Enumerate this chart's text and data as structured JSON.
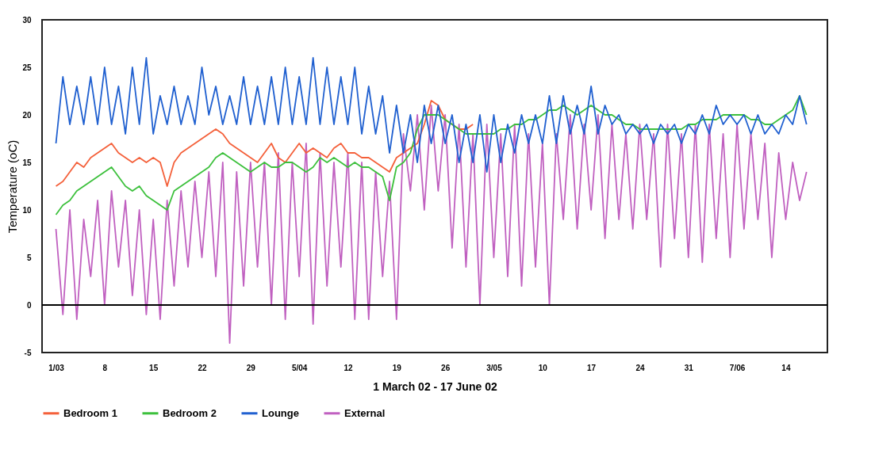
{
  "chart_data": {
    "type": "line",
    "xlabel": "1 March 02 - 17 June 02",
    "ylabel": "Temperature (oC)",
    "x": [
      "--03-01",
      "--03-02",
      "--03-03",
      "--03-04",
      "--03-05",
      "--03-06",
      "--03-07",
      "--03-08",
      "--03-09",
      "--03-10",
      "--03-11",
      "--03-12",
      "--03-13",
      "--03-14",
      "--03-15",
      "--03-16",
      "--03-17",
      "--03-18",
      "--03-19",
      "--03-20",
      "--03-21",
      "--03-22",
      "--03-23",
      "--03-24",
      "--03-25",
      "--03-26",
      "--03-27",
      "--03-28",
      "--03-29",
      "--03-30",
      "--03-31",
      "--04-01",
      "--04-02",
      "--04-03",
      "--04-04",
      "--04-05",
      "--04-06",
      "--04-07",
      "--04-08",
      "--04-09",
      "--04-10",
      "--04-11",
      "--04-12",
      "--04-13",
      "--04-14",
      "--04-15",
      "--04-16",
      "--04-17",
      "--04-18",
      "--04-19",
      "--04-20",
      "--04-21",
      "--04-22",
      "--04-23",
      "--04-24",
      "--04-25",
      "--04-26",
      "--04-27",
      "--04-28",
      "--04-29",
      "--04-30",
      "--05-01",
      "--05-02",
      "--05-03",
      "--05-04",
      "--05-05",
      "--05-06",
      "--05-07",
      "--05-08",
      "--05-09",
      "--05-10",
      "--05-11",
      "--05-12",
      "--05-13",
      "--05-14",
      "--05-15",
      "--05-16",
      "--05-17",
      "--05-18",
      "--05-19",
      "--05-20",
      "--05-21",
      "--05-22",
      "--05-23",
      "--05-24",
      "--05-25",
      "--05-26",
      "--05-27",
      "--05-28",
      "--05-29",
      "--05-30",
      "--05-31",
      "--06-01",
      "--06-02",
      "--06-03",
      "--06-04",
      "--06-05",
      "--06-06",
      "--06-07",
      "--06-08",
      "--06-09",
      "--06-10",
      "--06-11",
      "--06-12",
      "--06-13",
      "--06-14",
      "--06-15",
      "--06-16",
      "--06-17"
    ],
    "series": [
      {
        "name": "Bedroom 1",
        "color": "#f4603a",
        "values": [
          12.5,
          13,
          14,
          15,
          14.5,
          15.5,
          16,
          16.5,
          17,
          16,
          15.5,
          15,
          15.5,
          15,
          15.5,
          15,
          12.5,
          15,
          16,
          16.5,
          17,
          17.5,
          18,
          18.5,
          18,
          17,
          16.5,
          16,
          15.5,
          15,
          16,
          17,
          15.5,
          15,
          16,
          17,
          16,
          16.5,
          16,
          15.5,
          16.5,
          17,
          16,
          16,
          15.5,
          15.5,
          15,
          14.5,
          14,
          15.5,
          16,
          16.5,
          17,
          19,
          21.5,
          21,
          19.5,
          19,
          18.5,
          18.5,
          19,
          null,
          null,
          null,
          null,
          null,
          null,
          null,
          null,
          null,
          null,
          null,
          null,
          null,
          null,
          null,
          null,
          null,
          null,
          null,
          null,
          null,
          null,
          null,
          null,
          null,
          null,
          null,
          null,
          null,
          null,
          null,
          null,
          null,
          null,
          null,
          null,
          null,
          null,
          null,
          null,
          null,
          null,
          null,
          null,
          null,
          null,
          null,
          null
        ]
      },
      {
        "name": "Bedroom 2",
        "color": "#3cc03c",
        "values": [
          9.5,
          10.5,
          11,
          12,
          12.5,
          13,
          13.5,
          14,
          14.5,
          13.5,
          12.5,
          12,
          12.5,
          11.5,
          11,
          10.5,
          10,
          12,
          12.5,
          13,
          13.5,
          14,
          14.5,
          15.5,
          16,
          15.5,
          15,
          14.5,
          14,
          14.5,
          15,
          14.5,
          14.5,
          15,
          15,
          14.5,
          14,
          14.5,
          15.5,
          15,
          15.5,
          15,
          14.5,
          15,
          14.5,
          14.5,
          14,
          13.5,
          11,
          14.5,
          15,
          16,
          18.5,
          20,
          20,
          20,
          19.5,
          19,
          18.5,
          18,
          18,
          18,
          18,
          18,
          18.5,
          18.5,
          19,
          19,
          19.5,
          19.5,
          20,
          20.5,
          20.5,
          21,
          20.5,
          20,
          20.5,
          21,
          20.5,
          20,
          20,
          19.5,
          19,
          19,
          18.5,
          18.5,
          18.5,
          18.5,
          18.5,
          18.5,
          18.5,
          19,
          19,
          19.5,
          19.5,
          19.5,
          20,
          20,
          20,
          20,
          19.5,
          19.5,
          19,
          19,
          19.5,
          20,
          20.5,
          22,
          20
        ]
      },
      {
        "name": "Lounge",
        "color": "#2060d0",
        "values": [
          17,
          24,
          19,
          23,
          19,
          24,
          19,
          25,
          19,
          23,
          18,
          25,
          19,
          26,
          18,
          22,
          19,
          23,
          19,
          22,
          19,
          25,
          20,
          23,
          19,
          22,
          19,
          24,
          19,
          23,
          19,
          24,
          19,
          25,
          19,
          24,
          19,
          26,
          19,
          25,
          19,
          24,
          19,
          25,
          18,
          23,
          18,
          22,
          16,
          21,
          16,
          20,
          15,
          21,
          17,
          21,
          17,
          20,
          15,
          19,
          15,
          20,
          14,
          20,
          15,
          19,
          16,
          20,
          17,
          20,
          17,
          22,
          17,
          22,
          18,
          21,
          18,
          23,
          18,
          21,
          19,
          20,
          18,
          19,
          18,
          19,
          17,
          19,
          18,
          19,
          17,
          19,
          18,
          20,
          18,
          21,
          19,
          20,
          19,
          20,
          18,
          20,
          18,
          19,
          18,
          20,
          19,
          22,
          19
        ]
      },
      {
        "name": "External",
        "color": "#c060c0",
        "values": [
          8,
          -1,
          10,
          -1.5,
          9,
          3,
          11,
          0,
          12,
          4,
          11,
          1,
          10,
          -1,
          9,
          -1.5,
          11,
          2,
          12,
          4,
          13,
          5,
          14,
          3,
          15,
          -4,
          14,
          2,
          15,
          4,
          15,
          0,
          16,
          -1.5,
          15,
          3,
          17,
          -2,
          16,
          2,
          15,
          4,
          16,
          -1.5,
          15,
          -1.5,
          14,
          3,
          13,
          -1.5,
          18,
          12,
          20,
          10,
          21,
          12,
          20,
          6,
          19,
          4,
          18,
          0,
          19,
          5,
          18,
          3,
          19,
          2,
          18,
          4,
          17,
          0,
          18,
          9,
          20,
          8,
          19,
          10,
          20,
          7,
          19,
          9,
          18,
          8,
          19,
          9,
          18,
          4,
          19,
          7,
          18,
          5,
          19,
          4.5,
          19,
          7,
          18,
          5,
          19,
          8,
          18,
          9,
          17,
          5,
          16,
          9,
          15,
          11,
          14
        ]
      }
    ],
    "xlim": [
      "--02-27",
      "--06-20"
    ],
    "xticks": [
      {
        "value": "--03-01",
        "label": "1/03"
      },
      {
        "value": "--03-08",
        "label": "8"
      },
      {
        "value": "--03-15",
        "label": "15"
      },
      {
        "value": "--03-22",
        "label": "22"
      },
      {
        "value": "--03-29",
        "label": "29"
      },
      {
        "value": "--04-05",
        "label": "5/04"
      },
      {
        "value": "--04-12",
        "label": "12"
      },
      {
        "value": "--04-19",
        "label": "19"
      },
      {
        "value": "--04-26",
        "label": "26"
      },
      {
        "value": "--05-03",
        "label": "3/05"
      },
      {
        "value": "--05-10",
        "label": "10"
      },
      {
        "value": "--05-17",
        "label": "17"
      },
      {
        "value": "--05-24",
        "label": "24"
      },
      {
        "value": "--05-31",
        "label": "31"
      },
      {
        "value": "--06-07",
        "label": "7/06"
      },
      {
        "value": "--06-14",
        "label": "14"
      }
    ],
    "ylim": [
      -5,
      30
    ],
    "yticks": [
      -5,
      0,
      5,
      10,
      15,
      20,
      25,
      30
    ],
    "ref_lines": [
      {
        "axis": "y",
        "value": 0,
        "color": "#000000"
      }
    ],
    "grid": false,
    "legend": "bottom",
    "marker": "none",
    "line_style": "solid"
  }
}
